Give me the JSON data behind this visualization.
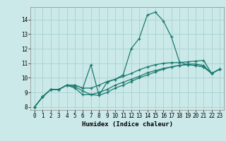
{
  "xlabel": "Humidex (Indice chaleur)",
  "ylabel": "",
  "background_color": "#cce9e9",
  "grid_color": "#aad4d4",
  "line_color": "#1a7a6e",
  "xlim": [
    -0.5,
    23.5
  ],
  "ylim": [
    7.8,
    14.85
  ],
  "xticks": [
    0,
    1,
    2,
    3,
    4,
    5,
    6,
    7,
    8,
    9,
    10,
    11,
    12,
    13,
    14,
    15,
    16,
    17,
    18,
    19,
    20,
    21,
    22,
    23
  ],
  "yticks": [
    8,
    9,
    10,
    11,
    12,
    13,
    14
  ],
  "curves": [
    {
      "x": [
        0,
        1,
        2,
        3,
        4,
        5,
        6,
        7,
        8,
        9,
        10,
        11,
        12,
        13,
        14,
        15,
        16,
        17,
        18,
        19,
        20,
        21,
        22,
        23
      ],
      "y": [
        8.0,
        8.7,
        9.2,
        9.2,
        9.5,
        9.5,
        9.3,
        10.9,
        8.8,
        9.7,
        9.9,
        10.2,
        12.0,
        12.7,
        14.3,
        14.5,
        13.9,
        12.8,
        11.1,
        10.9,
        10.85,
        10.75,
        10.3,
        10.6
      ]
    },
    {
      "x": [
        0,
        1,
        2,
        3,
        4,
        5,
        6,
        7,
        8,
        9,
        10,
        11,
        12,
        13,
        14,
        15,
        16,
        17,
        18,
        19,
        20,
        21,
        22,
        23
      ],
      "y": [
        8.0,
        8.7,
        9.2,
        9.2,
        9.5,
        9.5,
        9.3,
        9.3,
        9.5,
        9.75,
        9.9,
        10.1,
        10.3,
        10.55,
        10.75,
        10.9,
        11.0,
        11.05,
        11.05,
        11.1,
        11.15,
        11.2,
        10.3,
        10.6
      ]
    },
    {
      "x": [
        0,
        1,
        2,
        3,
        4,
        5,
        6,
        7,
        8,
        9,
        10,
        11,
        12,
        13,
        14,
        15,
        16,
        17,
        18,
        19,
        20,
        21,
        22,
        23
      ],
      "y": [
        8.0,
        8.7,
        9.2,
        9.2,
        9.5,
        9.3,
        8.85,
        8.85,
        9.0,
        9.2,
        9.5,
        9.7,
        9.9,
        10.1,
        10.35,
        10.5,
        10.65,
        10.75,
        10.85,
        10.9,
        10.85,
        10.75,
        10.3,
        10.6
      ]
    },
    {
      "x": [
        0,
        1,
        2,
        3,
        4,
        5,
        6,
        7,
        8,
        9,
        10,
        11,
        12,
        13,
        14,
        15,
        16,
        17,
        18,
        19,
        20,
        21,
        22,
        23
      ],
      "y": [
        8.0,
        8.7,
        9.2,
        9.2,
        9.5,
        9.4,
        9.1,
        8.85,
        8.8,
        9.0,
        9.3,
        9.5,
        9.75,
        10.0,
        10.2,
        10.4,
        10.6,
        10.75,
        10.85,
        10.95,
        10.95,
        10.85,
        10.3,
        10.6
      ]
    }
  ]
}
